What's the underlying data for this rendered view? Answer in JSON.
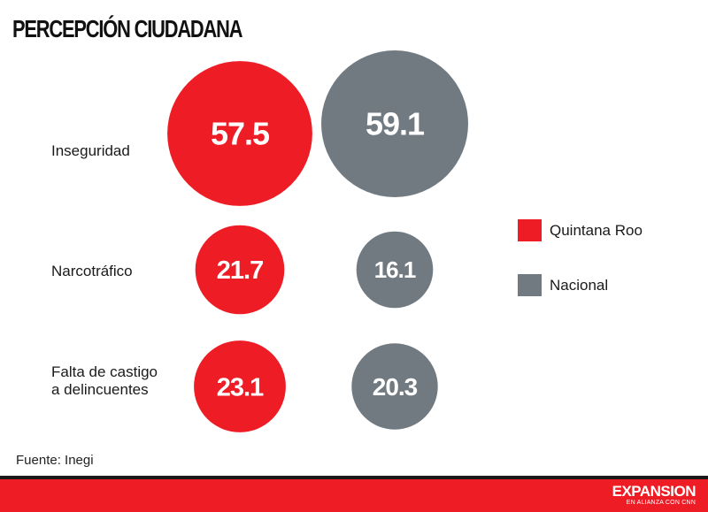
{
  "header": {
    "title": "PERCEPCIÓN CIUDADANA"
  },
  "colors": {
    "qroo": "#ee1c25",
    "nacional": "#717a80",
    "footer": "#ee1c25"
  },
  "chart_data": {
    "type": "bubble",
    "title": "PERCEPCIÓN CIUDADANA",
    "categories": [
      [
        "Inseguridad"
      ],
      [
        "Narcotráfico"
      ],
      [
        "Falta de castigo",
        "a delincuentes"
      ]
    ],
    "series": [
      {
        "name": "Quintana Roo",
        "values": [
          57.5,
          21.7,
          23.1
        ]
      },
      {
        "name": "Nacional",
        "values": [
          59.1,
          16.1,
          20.3
        ]
      }
    ],
    "legend_position": "right"
  },
  "footer": {
    "source": "Fuente: Inegi",
    "brand": "EXPANSION",
    "tagline": "EN ALIANZA CON CNN"
  }
}
